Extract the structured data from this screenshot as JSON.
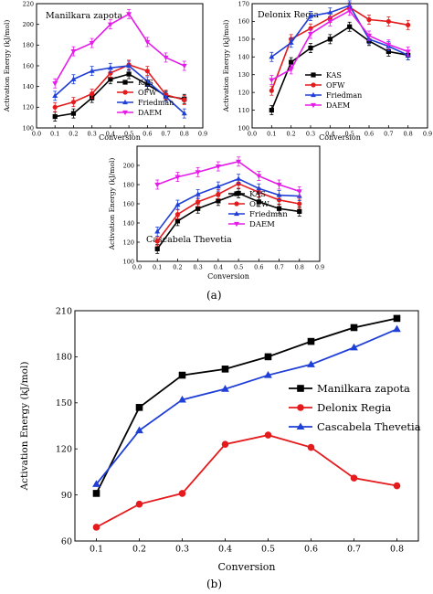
{
  "chart_data": [
    {
      "type": "line",
      "title": "Manilkara zapota",
      "xlabel": "Conversion",
      "ylabel": "Activation Energy (kJ/mol)",
      "xlim": [
        0.0,
        0.9
      ],
      "ylim": [
        100,
        220
      ],
      "xticks": [
        "0.0",
        "0.1",
        "0.2",
        "0.3",
        "0.4",
        "0.5",
        "0.6",
        "0.7",
        "0.8",
        "0.9"
      ],
      "yticks": [
        "100",
        "120",
        "140",
        "160",
        "180",
        "200",
        "220"
      ],
      "x": [
        0.1,
        0.2,
        0.3,
        0.4,
        0.5,
        0.6,
        0.7,
        0.8
      ],
      "legend_position": "center-right",
      "series": [
        {
          "name": "KAS",
          "color": "#000000",
          "marker": "square",
          "values": [
            111,
            114,
            129,
            147,
            152,
            142,
            131,
            128
          ]
        },
        {
          "name": "OFW",
          "color": "#e41a1c",
          "marker": "circle",
          "values": [
            120,
            125,
            133,
            153,
            161,
            155,
            132,
            127
          ]
        },
        {
          "name": "Friedman",
          "color": "#1f3fd6",
          "marker": "triangle-up",
          "values": [
            131,
            147,
            155,
            158,
            160,
            145,
            130,
            114
          ]
        },
        {
          "name": "DAEM",
          "color": "#e51ce8",
          "marker": "triangle-down",
          "values": [
            143,
            174,
            182,
            200,
            210,
            183,
            168,
            160
          ]
        }
      ]
    },
    {
      "type": "line",
      "title": "Delonix Regia",
      "xlabel": "Conversion",
      "ylabel": "Activation Energy (kJ/mol)",
      "xlim": [
        0.0,
        0.9
      ],
      "ylim": [
        100,
        170
      ],
      "xticks": [
        "0.0",
        "0.1",
        "0.2",
        "0.3",
        "0.4",
        "0.5",
        "0.6",
        "0.7",
        "0.8",
        "0.9"
      ],
      "yticks": [
        "100",
        "110",
        "120",
        "130",
        "140",
        "150",
        "160",
        "170"
      ],
      "x": [
        0.1,
        0.2,
        0.3,
        0.4,
        0.5,
        0.6,
        0.7,
        0.8
      ],
      "legend_position": "bottom-center",
      "series": [
        {
          "name": "KAS",
          "color": "#000000",
          "marker": "square",
          "values": [
            110,
            137,
            145,
            150,
            157,
            149,
            143,
            141
          ]
        },
        {
          "name": "OFW",
          "color": "#e41a1c",
          "marker": "circle",
          "values": [
            121,
            150,
            156,
            162,
            168,
            161,
            160,
            158
          ]
        },
        {
          "name": "Friedman",
          "color": "#1f3fd6",
          "marker": "triangle-up",
          "values": [
            140,
            148,
            163,
            165,
            169,
            150,
            146,
            141
          ]
        },
        {
          "name": "DAEM",
          "color": "#e51ce8",
          "marker": "triangle-down",
          "values": [
            127,
            133,
            153,
            160,
            166,
            152,
            147,
            143
          ]
        }
      ]
    },
    {
      "type": "line",
      "title": "Cascabela Thevetia",
      "xlabel": "Conversion",
      "ylabel": "Activation Energy (kJ/mol)",
      "xlim": [
        0.0,
        0.9
      ],
      "ylim": [
        100,
        220
      ],
      "xticks": [
        "0.0",
        "0.1",
        "0.2",
        "0.3",
        "0.4",
        "0.5",
        "0.6",
        "0.7",
        "0.8",
        "0.9"
      ],
      "yticks": [
        "100",
        "120",
        "140",
        "160",
        "180",
        "200"
      ],
      "x": [
        0.1,
        0.2,
        0.3,
        0.4,
        0.5,
        0.6,
        0.7,
        0.8
      ],
      "legend_position": "bottom-right",
      "series": [
        {
          "name": "KAS",
          "color": "#000000",
          "marker": "square",
          "values": [
            113,
            142,
            155,
            163,
            171,
            162,
            155,
            152
          ]
        },
        {
          "name": "OFW",
          "color": "#e41a1c",
          "marker": "circle",
          "values": [
            121,
            149,
            162,
            170,
            181,
            172,
            164,
            160
          ]
        },
        {
          "name": "Friedman",
          "color": "#1f3fd6",
          "marker": "triangle-up",
          "values": [
            131,
            159,
            170,
            178,
            186,
            176,
            169,
            168
          ]
        },
        {
          "name": "DAEM",
          "color": "#e51ce8",
          "marker": "triangle-down",
          "values": [
            180,
            188,
            193,
            199,
            204,
            189,
            180,
            173
          ]
        }
      ]
    },
    {
      "type": "line",
      "xlabel": "Conversion",
      "ylabel": "Activation Energy (kJ/mol)",
      "xlim": [
        0.05,
        0.85
      ],
      "ylim": [
        60,
        210
      ],
      "xticks": [
        "0.1",
        "0.2",
        "0.3",
        "0.4",
        "0.5",
        "0.6",
        "0.7",
        "0.8"
      ],
      "yticks": [
        "60",
        "90",
        "120",
        "150",
        "180",
        "210"
      ],
      "x": [
        0.1,
        0.2,
        0.3,
        0.4,
        0.5,
        0.6,
        0.7,
        0.8
      ],
      "legend_position": "center-right",
      "series": [
        {
          "name": "Manilkara zapota",
          "color": "#000000",
          "marker": "square",
          "values": [
            91,
            147,
            168,
            172,
            180,
            190,
            199,
            205
          ]
        },
        {
          "name": "Delonix Regia",
          "color": "#e41a1c",
          "marker": "circle",
          "values": [
            69,
            84,
            91,
            123,
            129,
            121,
            101,
            96
          ]
        },
        {
          "name": "Cascabela Thevetia",
          "color": "#1f3fd6",
          "marker": "triangle-up",
          "values": [
            97,
            132,
            152,
            159,
            168,
            175,
            186,
            198
          ]
        }
      ]
    }
  ],
  "captions": {
    "a": "(a)",
    "b": "(b)"
  }
}
